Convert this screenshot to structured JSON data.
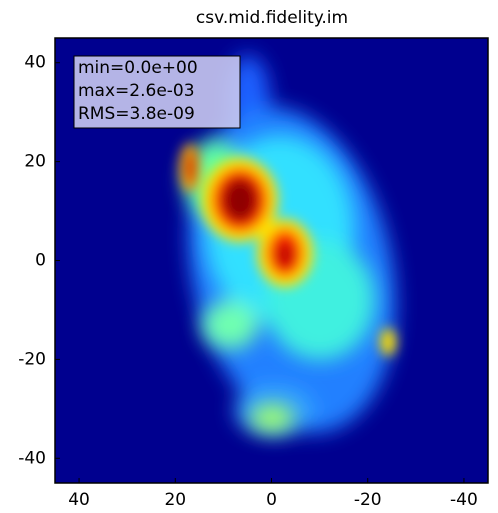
{
  "chart_data": {
    "type": "image",
    "title": "csv.mid.fidelity.im",
    "annotation": [
      "min=0.0e+00",
      "max=2.6e-03",
      "RMS=3.8e-09"
    ],
    "xlim": [
      45,
      -45
    ],
    "ylim": [
      -45,
      45
    ],
    "xticks": [
      40,
      20,
      0,
      -20,
      -40
    ],
    "yticks": [
      40,
      20,
      0,
      -20,
      -40
    ]
  }
}
